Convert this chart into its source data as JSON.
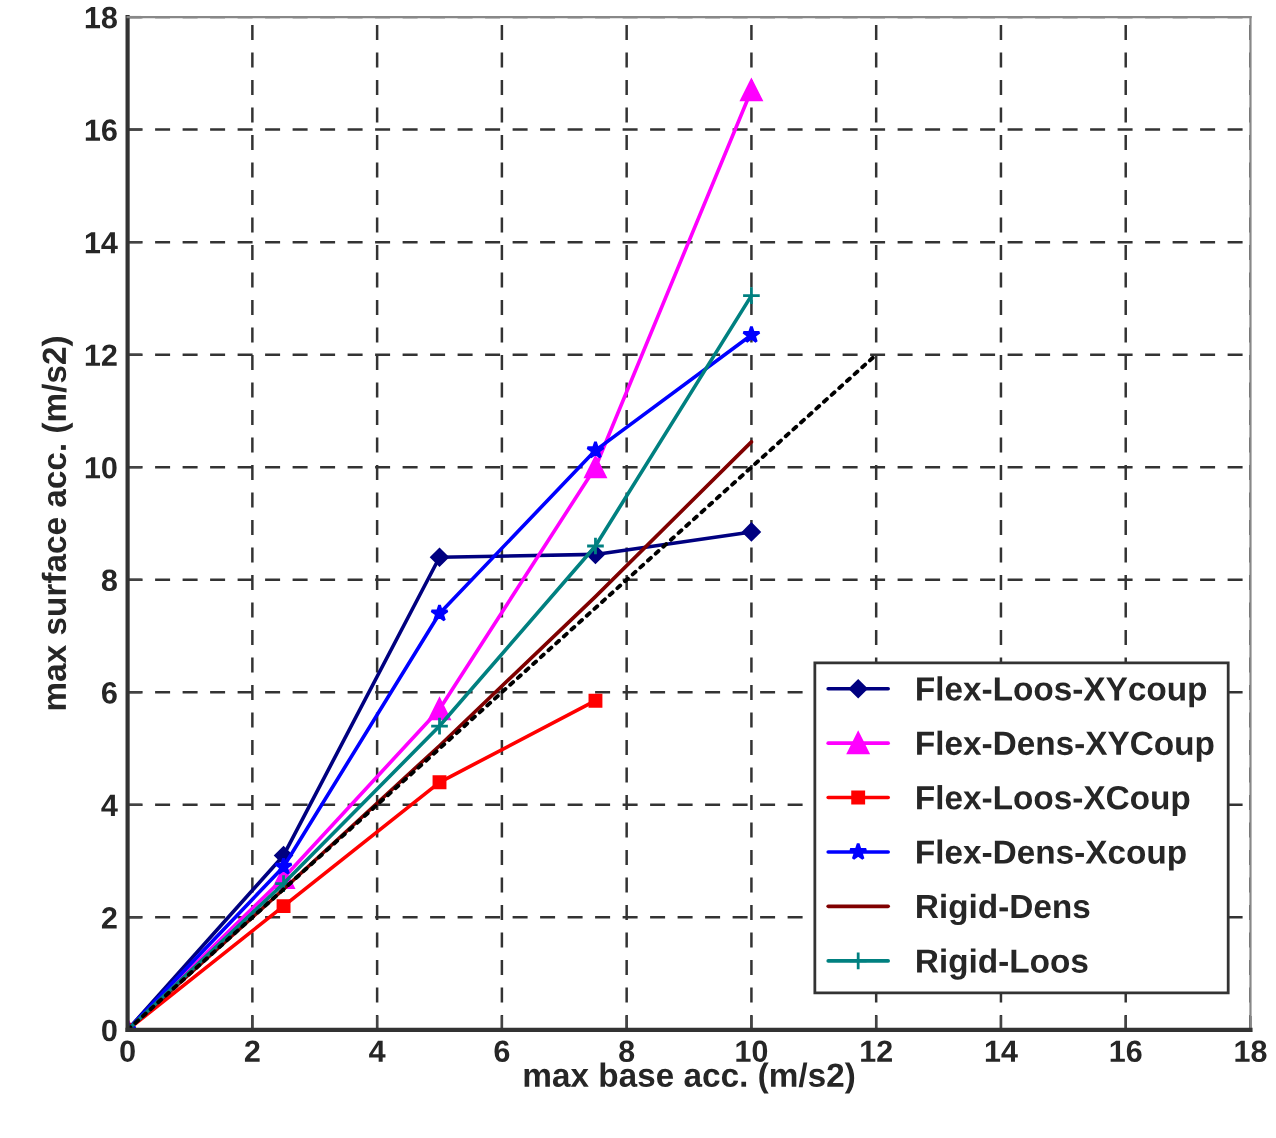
{
  "chart_data": {
    "type": "line",
    "xlabel": "max base acc. (m/s2)",
    "ylabel": "max surface acc. (m/s2)",
    "x": [
      0,
      2.5,
      5,
      7.5,
      10
    ],
    "series": [
      {
        "name": "Flex-Loos-XYcoup",
        "color": "#000080",
        "marker": "diamond",
        "values": [
          0,
          3.1,
          8.4,
          8.45,
          8.85
        ]
      },
      {
        "name": "Flex-Dens-XYCoup",
        "color": "#ff00ff",
        "marker": "triangle",
        "values": [
          0,
          2.7,
          5.7,
          10.0,
          16.7
        ]
      },
      {
        "name": "Flex-Loos-XCoup",
        "color": "#ff0000",
        "marker": "square",
        "values": [
          0,
          2.2,
          4.4,
          5.85,
          null
        ]
      },
      {
        "name": "Flex-Dens-Xcoup",
        "color": "#0000ff",
        "marker": "star",
        "values": [
          0,
          2.9,
          7.4,
          10.3,
          12.35
        ]
      },
      {
        "name": "Rigid-Dens",
        "color": "#800000",
        "marker": "none",
        "values": [
          0,
          2.5,
          5.05,
          7.7,
          10.45
        ]
      },
      {
        "name": "Rigid-Loos",
        "color": "#008080",
        "marker": "cross",
        "values": [
          0,
          2.6,
          5.4,
          8.6,
          13.05
        ]
      },
      {
        "color": "#000000",
        "marker": "none",
        "line_style": "dotted",
        "x": [
          0,
          12
        ],
        "values": [
          0,
          12
        ]
      }
    ],
    "xlim": [
      0,
      18
    ],
    "ylim": [
      0,
      18
    ],
    "xticks": [
      0,
      2,
      4,
      6,
      8,
      10,
      12,
      14,
      16,
      18
    ],
    "yticks": [
      0,
      2,
      4,
      6,
      8,
      10,
      12,
      14,
      16,
      18
    ],
    "grid": true,
    "legend": "bottom right"
  }
}
